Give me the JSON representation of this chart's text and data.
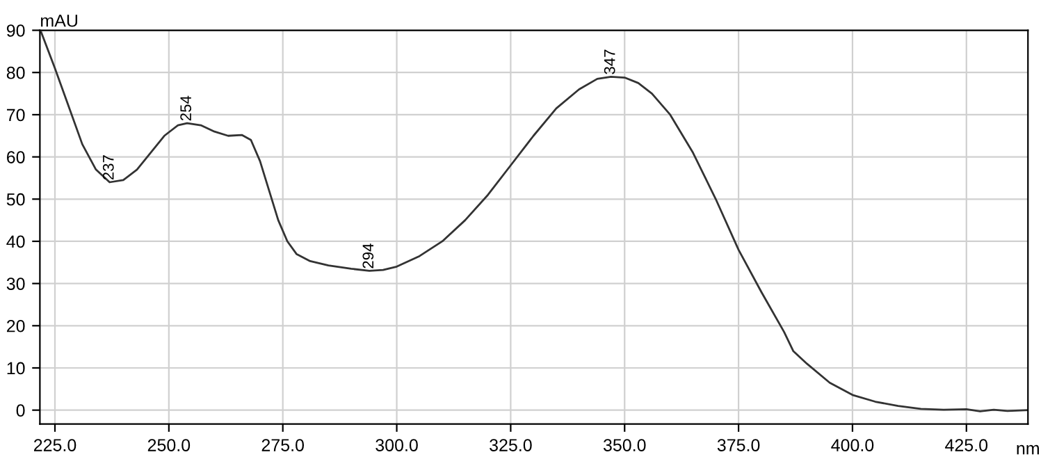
{
  "chart_data": {
    "type": "line",
    "xlabel": "nm",
    "ylabel": "mAU",
    "x": [
      222,
      225,
      228,
      231,
      234,
      237,
      240,
      243,
      246,
      249,
      252,
      254,
      257,
      260,
      263,
      266,
      268,
      270,
      272,
      274,
      276,
      278,
      281,
      285,
      290,
      294,
      297,
      300,
      305,
      310,
      315,
      320,
      325,
      330,
      335,
      340,
      344,
      347,
      350,
      353,
      356,
      360,
      365,
      370,
      375,
      380,
      385,
      387,
      390,
      395,
      400,
      405,
      410,
      415,
      420,
      425,
      428,
      431,
      434,
      438.5
    ],
    "series": [
      {
        "color": "#333333",
        "values": [
          89.5,
          81,
          72,
          63,
          57,
          54,
          54.5,
          57,
          61,
          65,
          67.5,
          68,
          67.5,
          66,
          65,
          65.2,
          64,
          59,
          52,
          45,
          40,
          37,
          35.3,
          34.3,
          33.5,
          33,
          33.2,
          34,
          36.5,
          40,
          45,
          51,
          58,
          65,
          71.5,
          76,
          78.5,
          79,
          78.8,
          77.5,
          75,
          70,
          61,
          50,
          38,
          28,
          18.5,
          14,
          11,
          6.5,
          3.6,
          2,
          1,
          0.3,
          0.1,
          0.2,
          -0.3,
          0.1,
          -0.2,
          0
        ]
      }
    ],
    "xlim": [
      221.7,
      438.5
    ],
    "ylim": [
      -3.3,
      90
    ],
    "xticks": [
      {
        "value": 225,
        "label": "225.0"
      },
      {
        "value": 250,
        "label": "250.0"
      },
      {
        "value": 275,
        "label": "275.0"
      },
      {
        "value": 300,
        "label": "300.0"
      },
      {
        "value": 325,
        "label": "325.0"
      },
      {
        "value": 350,
        "label": "350.0"
      },
      {
        "value": 375,
        "label": "375.0"
      },
      {
        "value": 400,
        "label": "400.0"
      },
      {
        "value": 425,
        "label": "425.0"
      }
    ],
    "yticks": [
      0,
      10,
      20,
      30,
      40,
      50,
      60,
      70,
      80,
      90
    ],
    "grid": true,
    "legend": false,
    "marker": "none",
    "line_style": "solid",
    "annotations": [
      {
        "text": "237",
        "x": 237,
        "y": 54
      },
      {
        "text": "254",
        "x": 254,
        "y": 68
      },
      {
        "text": "294",
        "x": 294,
        "y": 33
      },
      {
        "text": "347",
        "x": 347,
        "y": 79
      }
    ]
  }
}
